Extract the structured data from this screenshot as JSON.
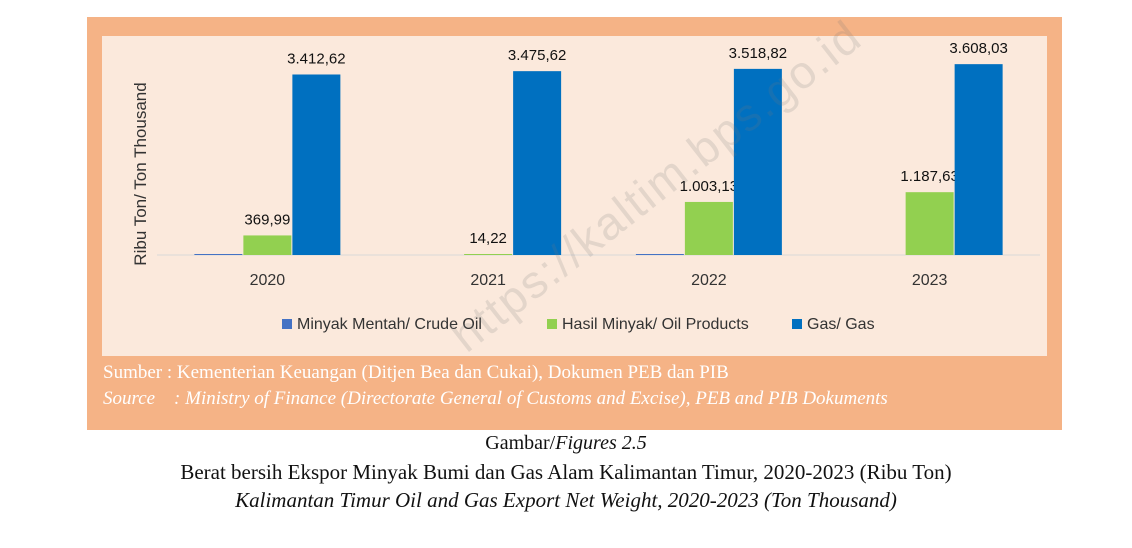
{
  "chart_data": {
    "type": "bar",
    "categories": [
      "2020",
      "2021",
      "2022",
      "2023"
    ],
    "series": [
      {
        "name": "Minyak Mentah/ Crude Oil",
        "color": "#4472c4",
        "values": [
          15,
          0,
          5,
          0
        ],
        "labels": [
          "",
          "",
          "",
          ""
        ]
      },
      {
        "name": "Hasil Minyak/ Oil Products",
        "color": "#92d050",
        "values": [
          369.99,
          14.22,
          1003.13,
          1187.63
        ],
        "labels": [
          "369,99",
          "14,22",
          "1.003,13",
          "1.187,63"
        ]
      },
      {
        "name": "Gas/ Gas",
        "color": "#0070c0",
        "values": [
          3412.62,
          3475.62,
          3518.82,
          3608.03
        ],
        "labels": [
          "3.412,62",
          "3.475,62",
          "3.518,82",
          "3.608,03"
        ]
      }
    ],
    "ylabel": "Ribu Ton/ Ton Thousand",
    "ylim": [
      0,
      3800
    ],
    "grid": false,
    "legend_position": "bottom"
  },
  "source": {
    "line1": "Sumber : Kementerian Keuangan (Ditjen Bea dan Cukai), Dokumen PEB dan PIB",
    "line2": "Source    : Ministry of Finance (Directorate General of Customs and Excise), PEB and PIB Dokuments"
  },
  "caption": {
    "figure_label_normal": "Gambar/",
    "figure_label_italic": "Figures 2.5",
    "title_id": "Berat bersih Ekspor Minyak Bumi dan Gas Alam Kalimantan Timur, 2020-2023 (Ribu Ton)",
    "title_en": "Kalimantan Timur Oil and Gas Export Net Weight, 2020-2023 (Ton Thousand)"
  },
  "watermark": "https://kaltim.bps.go.id"
}
